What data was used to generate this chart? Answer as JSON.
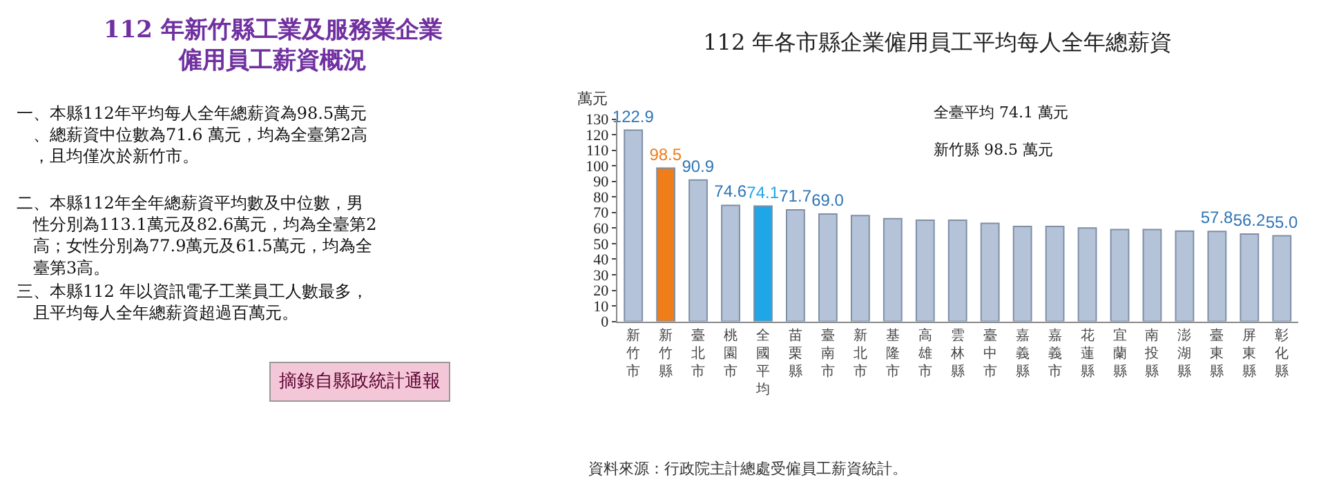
{
  "chart_data": {
    "type": "bar",
    "title": "112 年各市縣企業僱用員工平均每人全年總薪資",
    "ylabel": "萬元",
    "categories": [
      "新竹市",
      "新竹縣",
      "臺北市",
      "桃園市",
      "全國平均",
      "苗栗縣",
      "臺南市",
      "新北市",
      "基隆市",
      "高雄市",
      "雲林縣",
      "臺中市",
      "嘉義縣",
      "嘉義市",
      "花蓮縣",
      "宜蘭縣",
      "南投縣",
      "澎湖縣",
      "臺東縣",
      "屏東縣",
      "彰化縣"
    ],
    "values": [
      122.9,
      98.5,
      90.9,
      74.6,
      74.1,
      71.7,
      69.0,
      68,
      66,
      65,
      65,
      63,
      61,
      61,
      60,
      59,
      59,
      58,
      57.8,
      56.2,
      55.0
    ],
    "colors": [
      "#b4c3d8",
      "#ee7d1a",
      "#b4c3d8",
      "#b4c3d8",
      "#1ea6e6",
      "#b4c3d8",
      "#b4c3d8",
      "#b4c3d8",
      "#b4c3d8",
      "#b4c3d8",
      "#b4c3d8",
      "#b4c3d8",
      "#b4c3d8",
      "#b4c3d8",
      "#b4c3d8",
      "#b4c3d8",
      "#b4c3d8",
      "#b4c3d8",
      "#b4c3d8",
      "#b4c3d8",
      "#b4c3d8"
    ],
    "value_labels": [
      "122.9",
      "98.5",
      "90.9",
      "74.6",
      "74.1",
      "71.7",
      "69.0",
      null,
      null,
      null,
      null,
      null,
      null,
      null,
      null,
      null,
      null,
      null,
      "57.8",
      "56.2",
      "55.0"
    ],
    "ylim": [
      0,
      130
    ],
    "yticks": [
      0,
      10,
      20,
      30,
      40,
      50,
      60,
      70,
      80,
      90,
      100,
      110,
      120,
      130
    ],
    "legend": false,
    "annotations": [
      "112 年新竹縣工業及服務業企業僱用員工薪資概況",
      "一、本縣112年平均每人全年總薪資為98.5萬元、總薪資中位數為71.6 萬元，均為全臺第2高，且均僅次於新竹市。",
      "二、本縣112年全年總薪資平均數及中位數，男性分別為113.1萬元及82.6萬元，均為全臺第2高；女性分別為77.9萬元及61.5萬元，均為全臺第3高。",
      "三、本縣112 年以資訊電子工業員工人數最多，且平均每人全年總薪資超過百萬元。",
      "摘錄自縣政統計通報",
      "全臺平均 74.1 萬元",
      "新竹縣 98.5 萬元",
      "資料來源：行政院主計總處受僱員工薪資統計。"
    ]
  }
}
